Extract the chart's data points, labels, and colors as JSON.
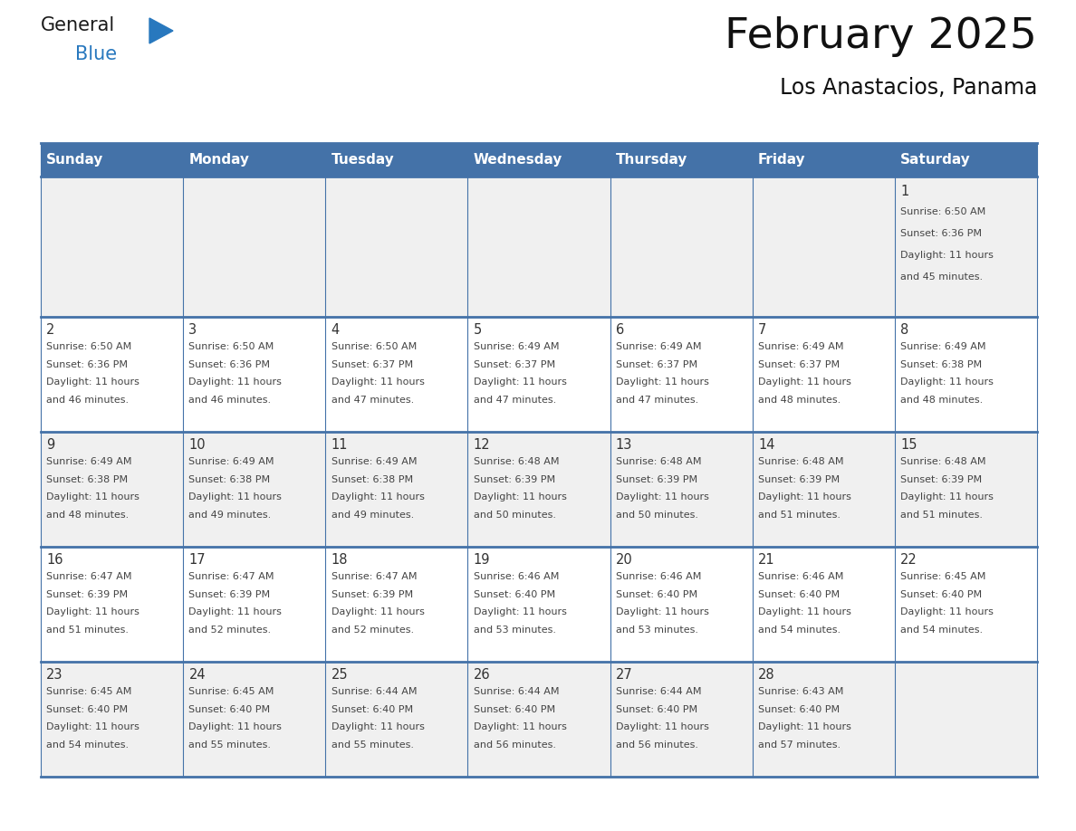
{
  "title": "February 2025",
  "subtitle": "Los Anastacios, Panama",
  "days_of_week": [
    "Sunday",
    "Monday",
    "Tuesday",
    "Wednesday",
    "Thursday",
    "Friday",
    "Saturday"
  ],
  "header_bg_color": "#4472a8",
  "header_text_color": "#ffffff",
  "cell_bg_color_odd": "#f0f0f0",
  "cell_bg_color_even": "#ffffff",
  "grid_line_color": "#4472a8",
  "inner_line_color": "#c0c0c0",
  "day_num_color": "#333333",
  "cell_text_color": "#444444",
  "title_color": "#111111",
  "subtitle_color": "#111111",
  "weeks": [
    [
      null,
      null,
      null,
      null,
      null,
      null,
      1
    ],
    [
      2,
      3,
      4,
      5,
      6,
      7,
      8
    ],
    [
      9,
      10,
      11,
      12,
      13,
      14,
      15
    ],
    [
      16,
      17,
      18,
      19,
      20,
      21,
      22
    ],
    [
      23,
      24,
      25,
      26,
      27,
      28,
      null
    ]
  ],
  "cell_data": {
    "1": {
      "sunrise": "6:50 AM",
      "sunset": "6:36 PM",
      "daylight": "11 hours and 45 minutes."
    },
    "2": {
      "sunrise": "6:50 AM",
      "sunset": "6:36 PM",
      "daylight": "11 hours and 46 minutes."
    },
    "3": {
      "sunrise": "6:50 AM",
      "sunset": "6:36 PM",
      "daylight": "11 hours and 46 minutes."
    },
    "4": {
      "sunrise": "6:50 AM",
      "sunset": "6:37 PM",
      "daylight": "11 hours and 47 minutes."
    },
    "5": {
      "sunrise": "6:49 AM",
      "sunset": "6:37 PM",
      "daylight": "11 hours and 47 minutes."
    },
    "6": {
      "sunrise": "6:49 AM",
      "sunset": "6:37 PM",
      "daylight": "11 hours and 47 minutes."
    },
    "7": {
      "sunrise": "6:49 AM",
      "sunset": "6:37 PM",
      "daylight": "11 hours and 48 minutes."
    },
    "8": {
      "sunrise": "6:49 AM",
      "sunset": "6:38 PM",
      "daylight": "11 hours and 48 minutes."
    },
    "9": {
      "sunrise": "6:49 AM",
      "sunset": "6:38 PM",
      "daylight": "11 hours and 48 minutes."
    },
    "10": {
      "sunrise": "6:49 AM",
      "sunset": "6:38 PM",
      "daylight": "11 hours and 49 minutes."
    },
    "11": {
      "sunrise": "6:49 AM",
      "sunset": "6:38 PM",
      "daylight": "11 hours and 49 minutes."
    },
    "12": {
      "sunrise": "6:48 AM",
      "sunset": "6:39 PM",
      "daylight": "11 hours and 50 minutes."
    },
    "13": {
      "sunrise": "6:48 AM",
      "sunset": "6:39 PM",
      "daylight": "11 hours and 50 minutes."
    },
    "14": {
      "sunrise": "6:48 AM",
      "sunset": "6:39 PM",
      "daylight": "11 hours and 51 minutes."
    },
    "15": {
      "sunrise": "6:48 AM",
      "sunset": "6:39 PM",
      "daylight": "11 hours and 51 minutes."
    },
    "16": {
      "sunrise": "6:47 AM",
      "sunset": "6:39 PM",
      "daylight": "11 hours and 51 minutes."
    },
    "17": {
      "sunrise": "6:47 AM",
      "sunset": "6:39 PM",
      "daylight": "11 hours and 52 minutes."
    },
    "18": {
      "sunrise": "6:47 AM",
      "sunset": "6:39 PM",
      "daylight": "11 hours and 52 minutes."
    },
    "19": {
      "sunrise": "6:46 AM",
      "sunset": "6:40 PM",
      "daylight": "11 hours and 53 minutes."
    },
    "20": {
      "sunrise": "6:46 AM",
      "sunset": "6:40 PM",
      "daylight": "11 hours and 53 minutes."
    },
    "21": {
      "sunrise": "6:46 AM",
      "sunset": "6:40 PM",
      "daylight": "11 hours and 54 minutes."
    },
    "22": {
      "sunrise": "6:45 AM",
      "sunset": "6:40 PM",
      "daylight": "11 hours and 54 minutes."
    },
    "23": {
      "sunrise": "6:45 AM",
      "sunset": "6:40 PM",
      "daylight": "11 hours and 54 minutes."
    },
    "24": {
      "sunrise": "6:45 AM",
      "sunset": "6:40 PM",
      "daylight": "11 hours and 55 minutes."
    },
    "25": {
      "sunrise": "6:44 AM",
      "sunset": "6:40 PM",
      "daylight": "11 hours and 55 minutes."
    },
    "26": {
      "sunrise": "6:44 AM",
      "sunset": "6:40 PM",
      "daylight": "11 hours and 56 minutes."
    },
    "27": {
      "sunrise": "6:44 AM",
      "sunset": "6:40 PM",
      "daylight": "11 hours and 56 minutes."
    },
    "28": {
      "sunrise": "6:43 AM",
      "sunset": "6:40 PM",
      "daylight": "11 hours and 57 minutes."
    }
  },
  "logo_text_general": "General",
  "logo_text_blue": "Blue",
  "logo_color_general": "#1a1a1a",
  "logo_color_blue": "#2878be",
  "logo_triangle_color": "#2878be"
}
